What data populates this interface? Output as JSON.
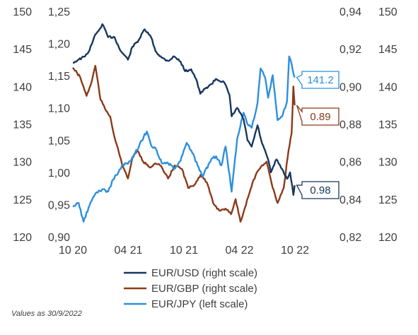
{
  "chart_data": {
    "type": "line",
    "footnote": "Values as 30/9/2022",
    "x_ticks": [
      "10 20",
      "04 21",
      "10 21",
      "04 22",
      "10 22"
    ],
    "x_range": [
      "2020-10-01",
      "2022-10-01"
    ],
    "axes": {
      "left_outer": {
        "ticks": [
          "150",
          "145",
          "140",
          "135",
          "130",
          "125",
          "120"
        ],
        "range": [
          120,
          150
        ]
      },
      "left_inner": {
        "ticks": [
          "1,25",
          "1,20",
          "1,15",
          "1,10",
          "1,05",
          "1,00",
          "0,95",
          "0,90"
        ],
        "range": [
          0.9,
          1.25
        ]
      },
      "right_inner": {
        "ticks": [
          "0,94",
          "0,92",
          "0,90",
          "0,88",
          "0,86",
          "0,84",
          "0,82"
        ],
        "range": [
          0.82,
          0.94
        ]
      },
      "right_outer": {
        "ticks": [
          "150",
          "145",
          "140",
          "135",
          "130",
          "125",
          "120"
        ],
        "range": [
          120,
          150
        ]
      }
    },
    "grid": false,
    "legend_position": "bottom",
    "series": [
      {
        "name": "EUR/USD (right scale)",
        "axis": "left_inner",
        "color": "#17375e",
        "end_label": "0.98",
        "points": [
          [
            "2020-10-01",
            1.17
          ],
          [
            "2020-10-20",
            1.175
          ],
          [
            "2020-11-10",
            1.18
          ],
          [
            "2020-11-25",
            1.19
          ],
          [
            "2020-12-10",
            1.21
          ],
          [
            "2020-12-25",
            1.22
          ],
          [
            "2021-01-06",
            1.23
          ],
          [
            "2021-01-25",
            1.21
          ],
          [
            "2021-02-15",
            1.21
          ],
          [
            "2021-03-05",
            1.19
          ],
          [
            "2021-03-31",
            1.175
          ],
          [
            "2021-04-15",
            1.195
          ],
          [
            "2021-05-05",
            1.205
          ],
          [
            "2021-05-25",
            1.222
          ],
          [
            "2021-06-15",
            1.21
          ],
          [
            "2021-06-30",
            1.188
          ],
          [
            "2021-07-20",
            1.178
          ],
          [
            "2021-08-10",
            1.173
          ],
          [
            "2021-08-30",
            1.18
          ],
          [
            "2021-09-20",
            1.172
          ],
          [
            "2021-10-05",
            1.157
          ],
          [
            "2021-10-25",
            1.16
          ],
          [
            "2021-11-10",
            1.145
          ],
          [
            "2021-11-24",
            1.122
          ],
          [
            "2021-12-10",
            1.13
          ],
          [
            "2021-12-31",
            1.137
          ],
          [
            "2022-01-14",
            1.145
          ],
          [
            "2022-02-10",
            1.14
          ],
          [
            "2022-02-28",
            1.12
          ],
          [
            "2022-03-07",
            1.087
          ],
          [
            "2022-03-25",
            1.1
          ],
          [
            "2022-04-15",
            1.083
          ],
          [
            "2022-04-28",
            1.05
          ],
          [
            "2022-05-12",
            1.04
          ],
          [
            "2022-05-31",
            1.073
          ],
          [
            "2022-06-15",
            1.045
          ],
          [
            "2022-07-05",
            1.02
          ],
          [
            "2022-07-14",
            1.0
          ],
          [
            "2022-08-01",
            1.02
          ],
          [
            "2022-08-20",
            1.005
          ],
          [
            "2022-09-05",
            0.99
          ],
          [
            "2022-09-15",
            1.0
          ],
          [
            "2022-09-26",
            0.965
          ],
          [
            "2022-09-30",
            0.98
          ]
        ]
      },
      {
        "name": "EUR/GBP (right scale)",
        "axis": "right_inner",
        "color": "#8b3a1a",
        "end_label": "0.89",
        "points": [
          [
            "2020-10-01",
            0.91
          ],
          [
            "2020-10-25",
            0.905
          ],
          [
            "2020-11-15",
            0.895
          ],
          [
            "2020-12-01",
            0.902
          ],
          [
            "2020-12-14",
            0.911
          ],
          [
            "2020-12-31",
            0.893
          ],
          [
            "2021-01-15",
            0.888
          ],
          [
            "2021-02-01",
            0.884
          ],
          [
            "2021-02-15",
            0.873
          ],
          [
            "2021-03-01",
            0.865
          ],
          [
            "2021-03-15",
            0.857
          ],
          [
            "2021-03-31",
            0.851
          ],
          [
            "2021-04-15",
            0.862
          ],
          [
            "2021-04-30",
            0.866
          ],
          [
            "2021-05-20",
            0.86
          ],
          [
            "2021-06-10",
            0.857
          ],
          [
            "2021-06-30",
            0.859
          ],
          [
            "2021-07-15",
            0.858
          ],
          [
            "2021-08-10",
            0.851
          ],
          [
            "2021-09-01",
            0.858
          ],
          [
            "2021-09-25",
            0.856
          ],
          [
            "2021-10-15",
            0.846
          ],
          [
            "2021-11-01",
            0.847
          ],
          [
            "2021-11-25",
            0.853
          ],
          [
            "2021-12-15",
            0.849
          ],
          [
            "2022-01-05",
            0.838
          ],
          [
            "2022-01-25",
            0.834
          ],
          [
            "2022-02-15",
            0.835
          ],
          [
            "2022-03-05",
            0.832
          ],
          [
            "2022-03-20",
            0.84
          ],
          [
            "2022-04-05",
            0.828
          ],
          [
            "2022-04-30",
            0.841
          ],
          [
            "2022-05-15",
            0.849
          ],
          [
            "2022-06-01",
            0.855
          ],
          [
            "2022-06-15",
            0.858
          ],
          [
            "2022-06-30",
            0.86
          ],
          [
            "2022-07-20",
            0.846
          ],
          [
            "2022-08-05",
            0.838
          ],
          [
            "2022-08-25",
            0.846
          ],
          [
            "2022-09-10",
            0.866
          ],
          [
            "2022-09-20",
            0.875
          ],
          [
            "2022-09-26",
            0.9
          ],
          [
            "2022-09-30",
            0.89
          ]
        ]
      },
      {
        "name": "EUR/JPY (left scale)",
        "axis": "left_outer",
        "color": "#2e8fdd",
        "end_label": "141.2",
        "points": [
          [
            "2020-10-01",
            124.0
          ],
          [
            "2020-10-20",
            124.5
          ],
          [
            "2020-11-05",
            122.0
          ],
          [
            "2020-11-25",
            124.2
          ],
          [
            "2020-12-15",
            125.8
          ],
          [
            "2021-01-05",
            126.3
          ],
          [
            "2021-01-25",
            126.0
          ],
          [
            "2021-02-10",
            127.6
          ],
          [
            "2021-02-28",
            128.6
          ],
          [
            "2021-03-15",
            129.6
          ],
          [
            "2021-03-31",
            129.7
          ],
          [
            "2021-04-20",
            130.8
          ],
          [
            "2021-05-15",
            132.8
          ],
          [
            "2021-06-01",
            134.0
          ],
          [
            "2021-06-15",
            132.2
          ],
          [
            "2021-06-30",
            131.8
          ],
          [
            "2021-07-20",
            129.8
          ],
          [
            "2021-08-10",
            129.8
          ],
          [
            "2021-08-30",
            129.0
          ],
          [
            "2021-09-20",
            130.1
          ],
          [
            "2021-10-10",
            132.5
          ],
          [
            "2021-10-25",
            131.5
          ],
          [
            "2021-11-15",
            129.5
          ],
          [
            "2021-12-01",
            128.0
          ],
          [
            "2021-12-31",
            130.4
          ],
          [
            "2022-01-15",
            130.7
          ],
          [
            "2022-02-01",
            129.5
          ],
          [
            "2022-02-15",
            132.0
          ],
          [
            "2022-03-07",
            126.0
          ],
          [
            "2022-03-25",
            133.0
          ],
          [
            "2022-04-15",
            136.5
          ],
          [
            "2022-04-28",
            135.0
          ],
          [
            "2022-05-12",
            134.5
          ],
          [
            "2022-05-31",
            137.8
          ],
          [
            "2022-06-10",
            142.4
          ],
          [
            "2022-06-25",
            141.2
          ],
          [
            "2022-07-05",
            138.5
          ],
          [
            "2022-07-20",
            141.5
          ],
          [
            "2022-08-05",
            135.5
          ],
          [
            "2022-08-20",
            136.0
          ],
          [
            "2022-09-05",
            138.0
          ],
          [
            "2022-09-12",
            144.0
          ],
          [
            "2022-09-20",
            143.0
          ],
          [
            "2022-09-30",
            141.2
          ]
        ]
      }
    ]
  }
}
